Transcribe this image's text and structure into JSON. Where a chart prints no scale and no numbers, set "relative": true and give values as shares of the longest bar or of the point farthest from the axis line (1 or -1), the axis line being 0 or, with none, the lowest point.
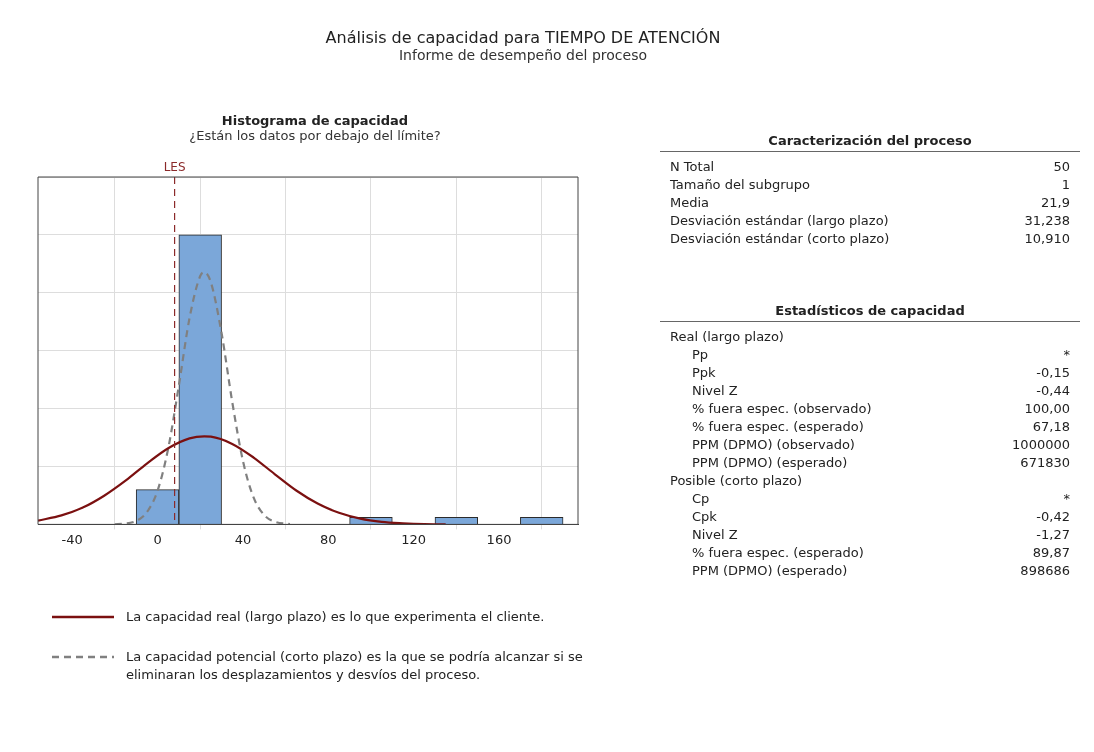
{
  "chart_data": [
    {
      "type": "other",
      "title": "Análisis de capacidad para TIEMPO DE ATENCIÓN",
      "subtitle": "Informe de desempeño del proceso"
    },
    {
      "type": "histogram",
      "title": "Histograma de capacidad",
      "subtitle": "¿Están los datos por debajo del límite?",
      "relative": true,
      "bins": [
        -10,
        10,
        30,
        50,
        70,
        90,
        110,
        130,
        150,
        170,
        190
      ],
      "values": [
        0.12,
        1,
        0,
        0,
        0,
        0.024,
        0,
        0.024,
        0,
        0.024
      ],
      "color": "#7ba7d9",
      "series": [
        {
          "type": "line",
          "name": "La capacidad real (largo plazo) es lo que experimenta el cliente.",
          "color": "#7b1010",
          "line_style": "solid",
          "x": [
            -56,
            -45,
            -35,
            -25,
            -15,
            -5,
            5,
            15,
            21.9,
            25,
            35,
            45,
            55,
            65,
            75,
            85,
            95,
            105,
            115,
            125,
            135
          ],
          "values": [
            0.013,
            0.031,
            0.058,
            0.099,
            0.151,
            0.21,
            0.263,
            0.297,
            0.304,
            0.303,
            0.278,
            0.231,
            0.173,
            0.117,
            0.072,
            0.04,
            0.02,
            0.009,
            0.004,
            0.001,
            0
          ]
        },
        {
          "type": "line",
          "name": "La capacidad potencial (corto plazo) es la que se podría alcanzar si se eliminaran los desplazamientos y desvíos del proceso.",
          "color": "#808080",
          "line_style": "dashed",
          "x": [
            -20,
            -10,
            -5,
            0,
            5,
            10,
            15,
            20,
            21.9,
            25,
            30,
            35,
            40,
            45,
            50,
            55,
            62
          ],
          "values": [
            0,
            0.012,
            0.042,
            0.116,
            0.262,
            0.48,
            0.713,
            0.858,
            0.871,
            0.836,
            0.661,
            0.423,
            0.22,
            0.093,
            0.032,
            0.009,
            0.001
          ]
        }
      ],
      "xlim": [
        -56,
        197
      ],
      "xticks": [
        -40,
        0,
        40,
        80,
        120,
        160
      ],
      "ref_lines": [
        {
          "axis": "x",
          "value": 8,
          "label": "LES",
          "color": "#8b2a2a",
          "line_style": "dashed"
        }
      ],
      "grid": true,
      "legend": "bottom"
    },
    {
      "type": "other",
      "title": "Caracterización del proceso",
      "categories": [
        "N Total",
        "Tamaño del subgrupo",
        "Media",
        "Desviación estándar (largo plazo)",
        "Desviación estándar (corto plazo)"
      ],
      "value_labels": [
        "50",
        "1",
        "21,9",
        "31,238",
        "10,910"
      ]
    },
    {
      "type": "other",
      "title": "Estadísticos de capacidad",
      "categories": [
        "Real (largo plazo)",
        "Pp",
        "Ppk",
        "Nivel Z",
        "% fuera espec. (observado)",
        "% fuera espec. (esperado)",
        "PPM (DPMO) (observado)",
        "PPM (DPMO) (esperado)",
        "Posible (corto plazo)",
        "Cp",
        "Cpk",
        "Nivel Z",
        "% fuera espec. (esperado)",
        "PPM (DPMO) (esperado)"
      ],
      "value_labels": [
        null,
        "*",
        "-0,15",
        "-0,44",
        "100,00",
        "67,18",
        "1000000",
        "671830",
        null,
        "*",
        "-0,42",
        "-1,27",
        "89,87",
        "898686"
      ]
    }
  ]
}
